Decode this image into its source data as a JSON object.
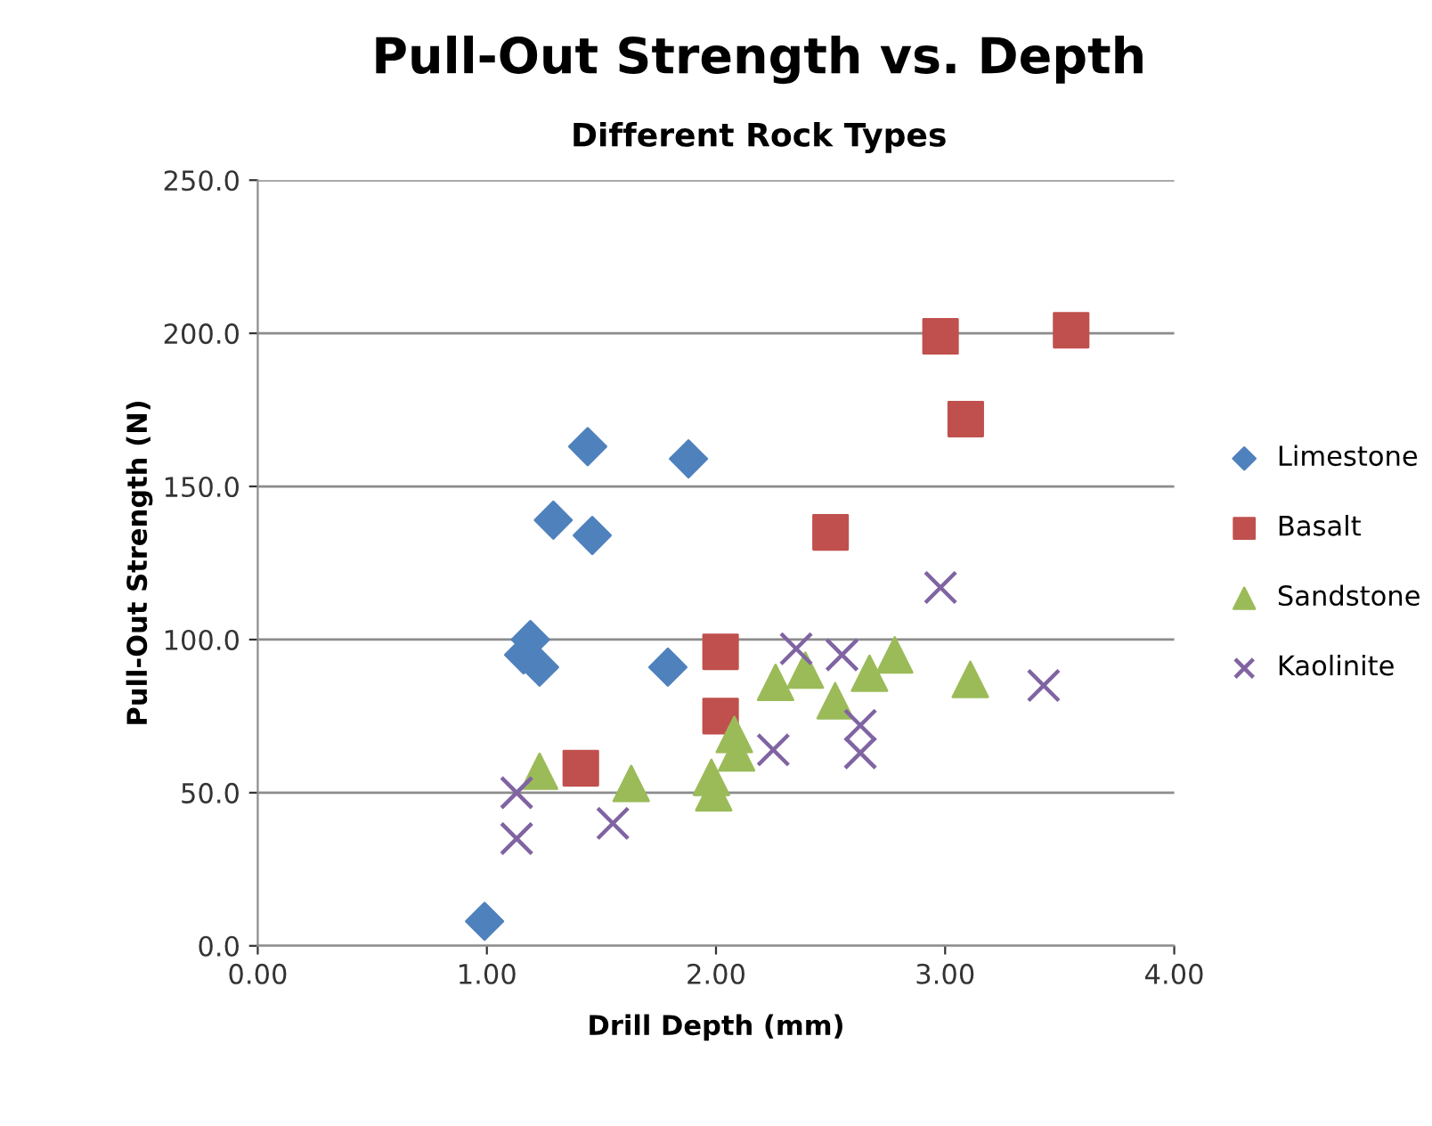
{
  "chart_data": {
    "type": "scatter",
    "title": "Pull-Out Strength vs. Depth",
    "subtitle": "Different Rock Types",
    "xlabel": "Drill Depth (mm)",
    "ylabel": "Pull-Out Strength (N)",
    "xlim": [
      0,
      4
    ],
    "xticks": [
      {
        "value": 0,
        "label": "0.00"
      },
      {
        "value": 1,
        "label": "1.00"
      },
      {
        "value": 2,
        "label": "2.00"
      },
      {
        "value": 3,
        "label": "3.00"
      },
      {
        "value": 4,
        "label": "4.00"
      }
    ],
    "ylim": [
      0,
      250
    ],
    "yticks": [
      {
        "value": 0,
        "label": "0.0"
      },
      {
        "value": 50,
        "label": "50.0"
      },
      {
        "value": 100,
        "label": "100.0"
      },
      {
        "value": 150,
        "label": "150.0"
      },
      {
        "value": 200,
        "label": "200.0"
      },
      {
        "value": 250,
        "label": "250.0"
      }
    ],
    "grid": "y",
    "legend": "right",
    "series": [
      {
        "name": "Limestone",
        "color": "#4f81bd",
        "marker": "diamond",
        "x": [
          0.99,
          1.19,
          1.16,
          1.23,
          1.29,
          1.44,
          1.46,
          1.88,
          1.79
        ],
        "values": [
          8,
          100,
          95,
          91,
          139,
          163,
          134,
          159,
          91
        ]
      },
      {
        "name": "Basalt",
        "color": "#c0504d",
        "marker": "square",
        "x": [
          1.41,
          2.02,
          2.02,
          2.5,
          2.98,
          3.09,
          3.55
        ],
        "values": [
          58,
          96,
          75,
          135,
          199,
          172,
          201
        ]
      },
      {
        "name": "Sandstone",
        "color": "#9bbb59",
        "marker": "triangle",
        "x": [
          1.23,
          1.63,
          1.98,
          1.99,
          2.08,
          2.09,
          2.26,
          2.39,
          2.52,
          2.67,
          2.78,
          3.11
        ],
        "values": [
          57,
          53,
          55,
          50,
          69,
          63,
          86,
          90,
          80,
          89,
          95,
          87
        ]
      },
      {
        "name": "Kaolinite",
        "color": "#8064a2",
        "marker": "cross",
        "x": [
          1.13,
          1.13,
          1.55,
          2.25,
          2.35,
          2.55,
          2.63,
          2.63,
          2.98,
          3.43
        ],
        "values": [
          50,
          35,
          40,
          64,
          97,
          95,
          72,
          63,
          117,
          85
        ]
      }
    ]
  }
}
